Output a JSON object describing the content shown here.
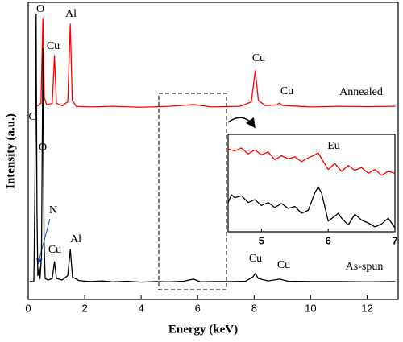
{
  "chart_data": [
    {
      "type": "line",
      "xlabel": "Energy (keV)",
      "ylabel": "Intensity (a.u.)",
      "xlim": [
        0,
        13.1
      ],
      "xticks": [
        0,
        2,
        4,
        6,
        8,
        10,
        12
      ],
      "ylim": [
        0,
        100
      ],
      "series": [
        {
          "name": "Annealed",
          "color": "#ff0000",
          "x": [
            0.3,
            0.45,
            0.52,
            0.57,
            0.65,
            0.85,
            0.93,
            1.0,
            1.2,
            1.4,
            1.49,
            1.56,
            1.7,
            2.2,
            3,
            4,
            5,
            5.85,
            6.5,
            7.5,
            7.9,
            8.04,
            8.15,
            8.4,
            8.8,
            8.9,
            9.0,
            10,
            11,
            12,
            13
          ],
          "values": [
            65,
            66,
            94.6,
            68,
            65.5,
            66,
            82.1,
            66,
            65.2,
            66.5,
            92.7,
            67,
            65,
            64.8,
            65,
            64.7,
            65,
            65.6,
            64.8,
            65,
            66.5,
            77,
            67,
            65.2,
            65.5,
            66.1,
            65.3,
            64.8,
            65,
            64.9,
            65
          ]
        },
        {
          "name": "As-spun",
          "color": "#000000",
          "x": [
            0.05,
            0.2,
            0.24,
            0.28,
            0.31,
            0.34,
            0.37,
            0.39,
            0.42,
            0.47,
            0.52,
            0.56,
            0.6,
            0.7,
            0.85,
            0.93,
            1.0,
            1.2,
            1.4,
            1.49,
            1.57,
            1.8,
            2.2,
            2.6,
            3.0,
            3.5,
            4.0,
            4.5,
            5.0,
            5.5,
            5.85,
            6.1,
            6.6,
            7.2,
            7.7,
            7.95,
            8.04,
            8.15,
            8.5,
            8.9,
            9.2,
            10,
            11,
            12,
            13
          ],
          "values": [
            6,
            6,
            40,
            96,
            30,
            8,
            9,
            11,
            7,
            15,
            84.5,
            20,
            7,
            6.5,
            7,
            12.7,
            7,
            6.5,
            8,
            16.8,
            7.5,
            6.3,
            6,
            6.2,
            5.9,
            6.1,
            5.8,
            6,
            5.9,
            6.1,
            6.8,
            5.9,
            6,
            6,
            6.1,
            7.5,
            8.7,
            7,
            6.2,
            6.8,
            6.1,
            6,
            6,
            5.9,
            6
          ]
        }
      ],
      "annotations": [
        "O",
        "Cu",
        "Al",
        "Cu",
        "Cu",
        "C",
        "O",
        "N",
        "Cu",
        "Al",
        "Cu",
        "Cu"
      ]
    },
    {
      "type": "line",
      "xlim": [
        4.5,
        7
      ],
      "xticks": [
        5,
        6,
        7
      ],
      "ylim": [
        0,
        100
      ],
      "series": [
        {
          "color": "#ff0000",
          "x": [
            4.5,
            4.6,
            4.7,
            4.8,
            4.9,
            5.0,
            5.1,
            5.2,
            5.3,
            5.4,
            5.5,
            5.6,
            5.7,
            5.8,
            5.85,
            5.9,
            6.0,
            6.1,
            6.2,
            6.3,
            6.4,
            6.5,
            6.6,
            6.7,
            6.8,
            6.9,
            7.0
          ],
          "values": [
            85,
            83,
            86,
            80,
            84,
            79,
            82,
            74,
            78,
            75,
            77,
            72,
            76,
            79,
            81,
            75,
            64,
            70,
            62,
            68,
            63,
            66,
            60,
            64,
            58,
            62,
            60
          ]
        },
        {
          "color": "#000000",
          "x": [
            4.5,
            4.55,
            4.6,
            4.7,
            4.8,
            4.9,
            5.0,
            5.1,
            5.2,
            5.3,
            5.4,
            5.5,
            5.6,
            5.7,
            5.8,
            5.85,
            5.9,
            6.0,
            6.1,
            6.15,
            6.2,
            6.3,
            6.4,
            6.5,
            6.6,
            6.7,
            6.8,
            6.9,
            7.0
          ],
          "values": [
            30,
            38,
            35,
            37,
            30,
            33,
            27,
            30,
            25,
            29,
            24,
            26,
            19,
            22,
            40,
            46,
            40,
            11,
            16,
            19,
            14,
            7,
            18,
            12,
            9,
            5,
            8,
            14,
            4
          ]
        }
      ],
      "annotations": [
        "Eu"
      ]
    }
  ]
}
